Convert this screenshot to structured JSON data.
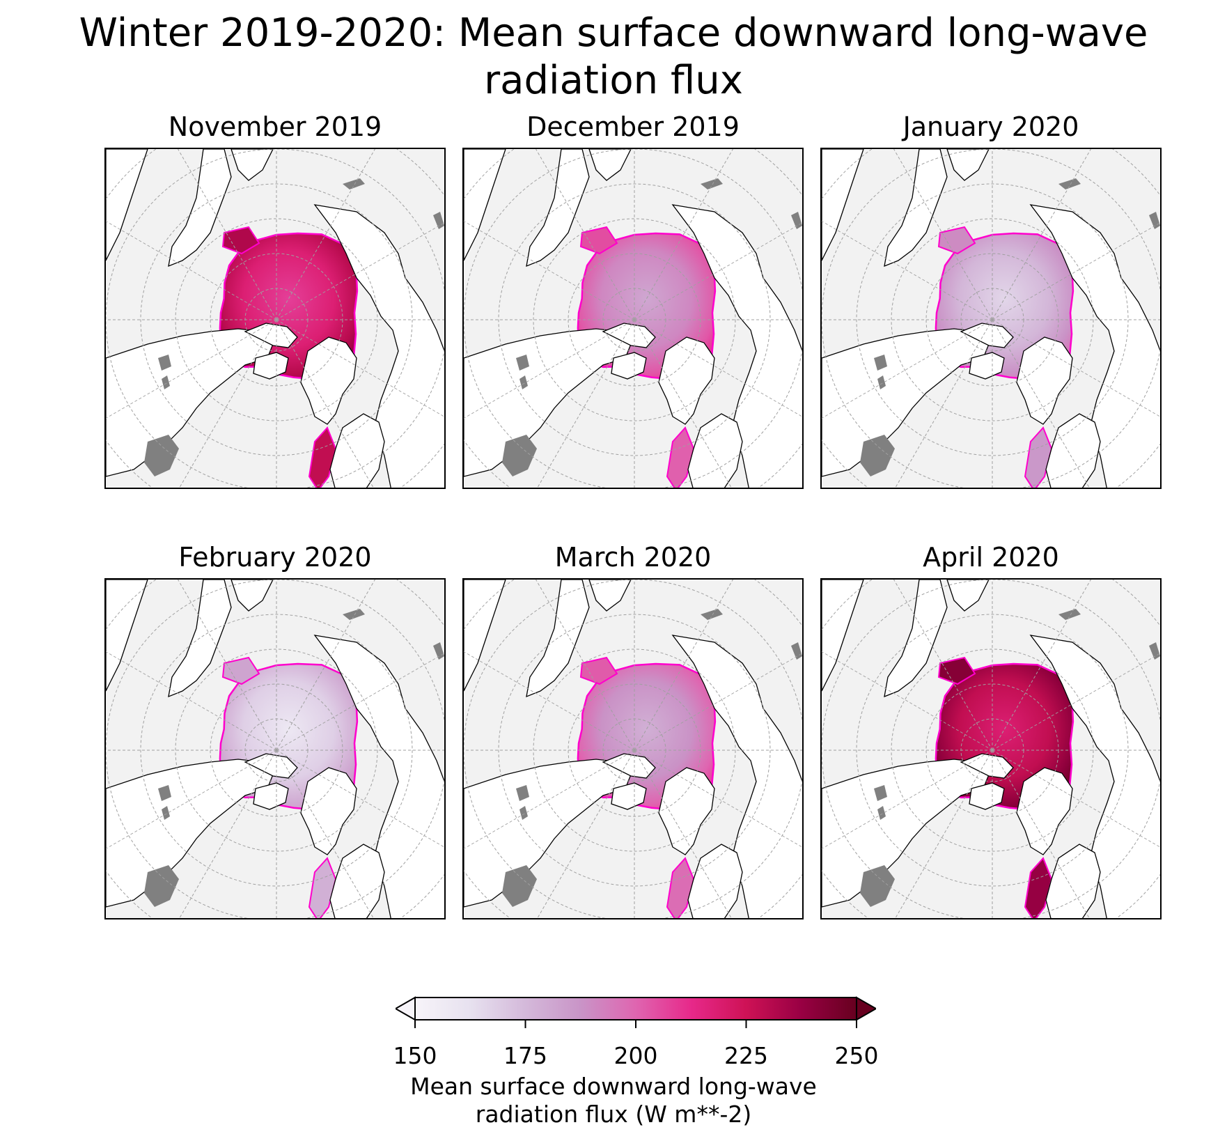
{
  "title": "Winter 2019-2020: Mean surface downward long-wave\nradiation flux",
  "colorbar": {
    "label_line1": "Mean surface downward long-wave",
    "label_line2": "radiation flux (W m**-2)",
    "ticks": [
      "150",
      "175",
      "200",
      "225",
      "250"
    ],
    "min": 150,
    "max": 250,
    "extend": "both",
    "colors": [
      "#f7f4f9",
      "#e7e1ef",
      "#d4b9da",
      "#c994c7",
      "#df65b0",
      "#e7298a",
      "#ce1256",
      "#980043",
      "#67001f"
    ]
  },
  "map_style": {
    "ocean": "#f2f2f2",
    "land": "#ffffff",
    "lakes": "#808080",
    "coastline": "#000000",
    "gridlines": "#a0a0a0"
  },
  "panels": [
    {
      "title": "November 2019",
      "mean_flux": 222
    },
    {
      "title": "December 2019",
      "mean_flux": 195
    },
    {
      "title": "January 2020",
      "mean_flux": 180
    },
    {
      "title": "February 2020",
      "mean_flux": 172
    },
    {
      "title": "March 2020",
      "mean_flux": 192
    },
    {
      "title": "April 2020",
      "mean_flux": 232
    }
  ]
}
